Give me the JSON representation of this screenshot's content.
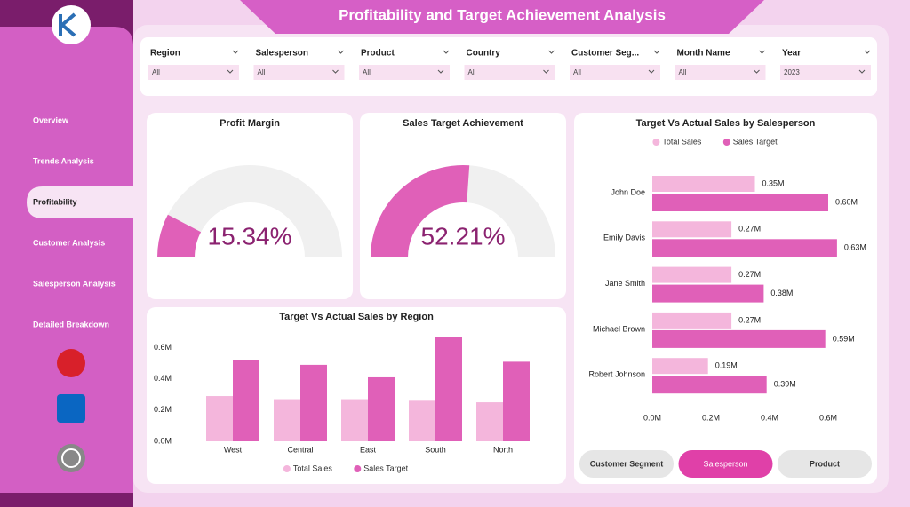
{
  "header": {
    "title": "Profitability and Target Achievement Analysis"
  },
  "filters": [
    {
      "label": "Region",
      "value": "All"
    },
    {
      "label": "Salesperson",
      "value": "All"
    },
    {
      "label": "Product",
      "value": "All"
    },
    {
      "label": "Country",
      "value": "All"
    },
    {
      "label": "Customer Seg...",
      "value": "All"
    },
    {
      "label": "Month Name",
      "value": "All"
    },
    {
      "label": "Year",
      "value": "2023"
    }
  ],
  "nav": [
    "Overview",
    "Trends Analysis",
    "Profitability",
    "Customer Analysis",
    "Salesperson Analysis",
    "Detailed Breakdown"
  ],
  "buttons": [
    "Customer Segment",
    "Salesperson",
    "Product"
  ],
  "chart_data": [
    {
      "type": "gauge",
      "title": "Profit Margin",
      "values": [
        15.34
      ],
      "value_labels": [
        "15.34%"
      ],
      "ylim": [
        0,
        100
      ],
      "color": "#e060b8"
    },
    {
      "type": "gauge",
      "title": "Sales Target Achievement",
      "values": [
        52.21
      ],
      "value_labels": [
        "52.21%"
      ],
      "ylim": [
        0,
        100
      ],
      "color": "#e060b8"
    },
    {
      "type": "bar",
      "title": "Target Vs Actual Sales by Region",
      "categories": [
        "West",
        "Central",
        "East",
        "South",
        "North"
      ],
      "series": [
        {
          "name": "Total Sales",
          "color": "#f4b6dc",
          "values": [
            0.29,
            0.27,
            0.27,
            0.26,
            0.25
          ]
        },
        {
          "name": "Sales Target",
          "color": "#e060b8",
          "values": [
            0.52,
            0.49,
            0.41,
            0.67,
            0.51
          ]
        }
      ],
      "ylim": [
        0,
        0.7
      ],
      "yticks": [
        {
          "value": 0,
          "label": "0.0M"
        },
        {
          "value": 0.2,
          "label": "0.2M"
        },
        {
          "value": 0.4,
          "label": "0.4M"
        },
        {
          "value": 0.6,
          "label": "0.6M"
        }
      ],
      "legend": "bottom"
    },
    {
      "type": "hbar",
      "title": "Target Vs Actual Sales by Salesperson",
      "categories": [
        "John Doe",
        "Emily Davis",
        "Jane Smith",
        "Michael Brown",
        "Robert Johnson"
      ],
      "series": [
        {
          "name": "Total Sales",
          "color": "#f4b6dc",
          "values": [
            0.35,
            0.27,
            0.27,
            0.27,
            0.19
          ],
          "value_labels": [
            "0.35M",
            "0.27M",
            "0.27M",
            "0.27M",
            "0.19M"
          ]
        },
        {
          "name": "Sales Target",
          "color": "#e060b8",
          "values": [
            0.6,
            0.63,
            0.38,
            0.59,
            0.39
          ],
          "value_labels": [
            "0.60M",
            "0.63M",
            "0.38M",
            "0.59M",
            "0.39M"
          ]
        }
      ],
      "xlim": [
        0,
        0.7
      ],
      "xticks": [
        {
          "value": 0,
          "label": "0.0M"
        },
        {
          "value": 0.2,
          "label": "0.2M"
        },
        {
          "value": 0.4,
          "label": "0.4M"
        },
        {
          "value": 0.6,
          "label": "0.6M"
        }
      ],
      "legend": "top"
    }
  ]
}
